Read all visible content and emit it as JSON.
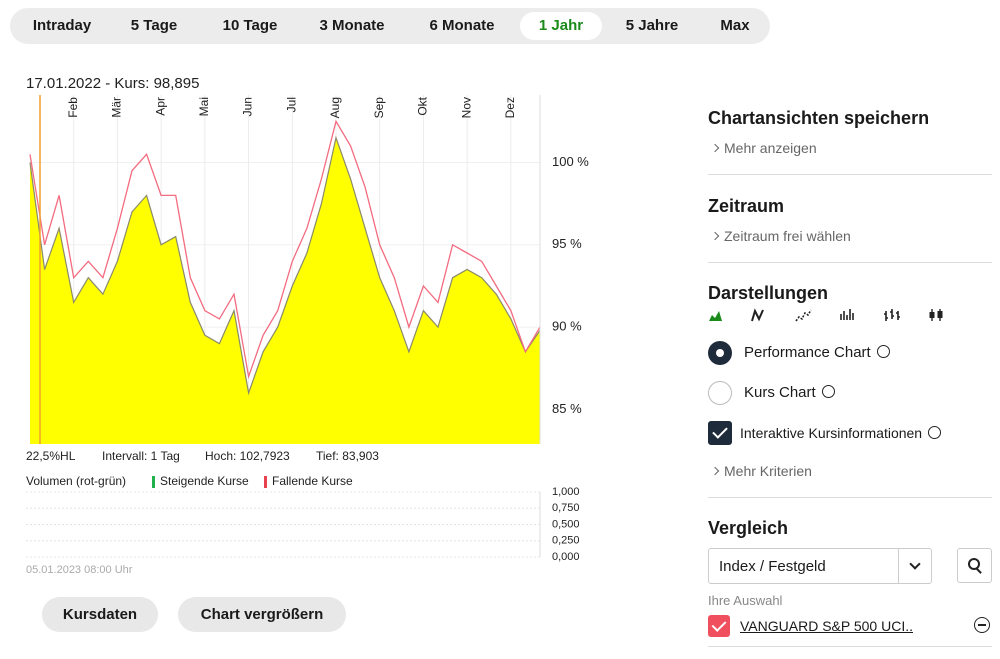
{
  "tabs": [
    "Intraday",
    "5 Tage",
    "10 Tage",
    "3 Monate",
    "6 Monate",
    "1 Jahr",
    "5 Jahre",
    "Max"
  ],
  "active_tab": 5,
  "chart_data": [
    {
      "type": "area",
      "title": "17.01.2022  -  Kurs: 98,895",
      "categories": [
        null,
        null,
        null,
        "Feb",
        null,
        null,
        "Mär",
        null,
        null,
        "Apr",
        null,
        null,
        "Mai",
        null,
        null,
        "Jun",
        null,
        null,
        "Jul",
        null,
        null,
        "Aug",
        null,
        null,
        "Sep",
        null,
        null,
        "Okt",
        null,
        null,
        "Nov",
        null,
        null,
        "Dez",
        null,
        null
      ],
      "series": [
        {
          "color": "#ffff00",
          "values": [
            100,
            93.5,
            96,
            91.5,
            93,
            92,
            94,
            97,
            98,
            95,
            95.5,
            91.5,
            89.5,
            89,
            91,
            86,
            88.5,
            90,
            92.5,
            94.5,
            97.5,
            101.5,
            99,
            96,
            93,
            91,
            88.5,
            91,
            90,
            93,
            93.5,
            93,
            92,
            90.5,
            88.5,
            89.8
          ]
        },
        {
          "color": "#f36b7f",
          "values": [
            100.5,
            95,
            98,
            93,
            94,
            93,
            96,
            99.5,
            100.5,
            98,
            98,
            93,
            91,
            90.5,
            92,
            87,
            89.5,
            91,
            94,
            96,
            99,
            102.5,
            101,
            98.5,
            95,
            93,
            90,
            92.5,
            91.5,
            95,
            94.5,
            94,
            92.5,
            91,
            88.5,
            90
          ]
        }
      ],
      "ylim": [
        82.9,
        104.1
      ],
      "yticks": [
        {
          "value": 85,
          "label": "85 %"
        },
        {
          "value": 90,
          "label": "90 %"
        },
        {
          "value": 95,
          "label": "95 %"
        },
        {
          "value": 100,
          "label": "100 %"
        }
      ],
      "info": [
        "22,5%HL",
        "Intervall: 1 Tag",
        "Hoch: 102,7923",
        "Tief: 83,903"
      ]
    },
    {
      "type": "bar",
      "title": "Volumen (rot-grün)",
      "categories": [],
      "series": [
        {
          "name": "Steigende Kurse",
          "color": "#22b14c",
          "values": []
        },
        {
          "name": "Fallende Kurse",
          "color": "#e8414f",
          "values": []
        }
      ],
      "ylim": [
        0,
        1
      ],
      "yticks": [
        {
          "value": 0,
          "label": "0,000"
        },
        {
          "value": 0.25,
          "label": "0,250"
        },
        {
          "value": 0.5,
          "label": "0,500"
        },
        {
          "value": 0.75,
          "label": "0,750"
        },
        {
          "value": 1,
          "label": "1,000"
        }
      ]
    }
  ],
  "chart_footer": "05.01.2023 08:00 Uhr",
  "buttons": [
    "Kursdaten",
    "Chart vergrößern"
  ],
  "sidebar": {
    "save": {
      "title": "Chartansichten speichern",
      "link": "Mehr anzeigen"
    },
    "period": {
      "title": "Zeitraum",
      "link": "Zeitraum frei wählen"
    },
    "views": {
      "title": "Darstellungen",
      "options": [
        {
          "label": "Performance Chart",
          "selected": true
        },
        {
          "label": "Kurs Chart",
          "selected": false
        }
      ],
      "checkbox": {
        "label": "Interaktive Kursinformationen",
        "checked": true
      },
      "link": "Mehr Kriterien"
    },
    "compare": {
      "title": "Vergleich",
      "select": "Index / Festgeld",
      "selection_label": "Ihre Auswahl",
      "selected": [
        "VANGUARD S&P 500 UCI.."
      ]
    }
  }
}
